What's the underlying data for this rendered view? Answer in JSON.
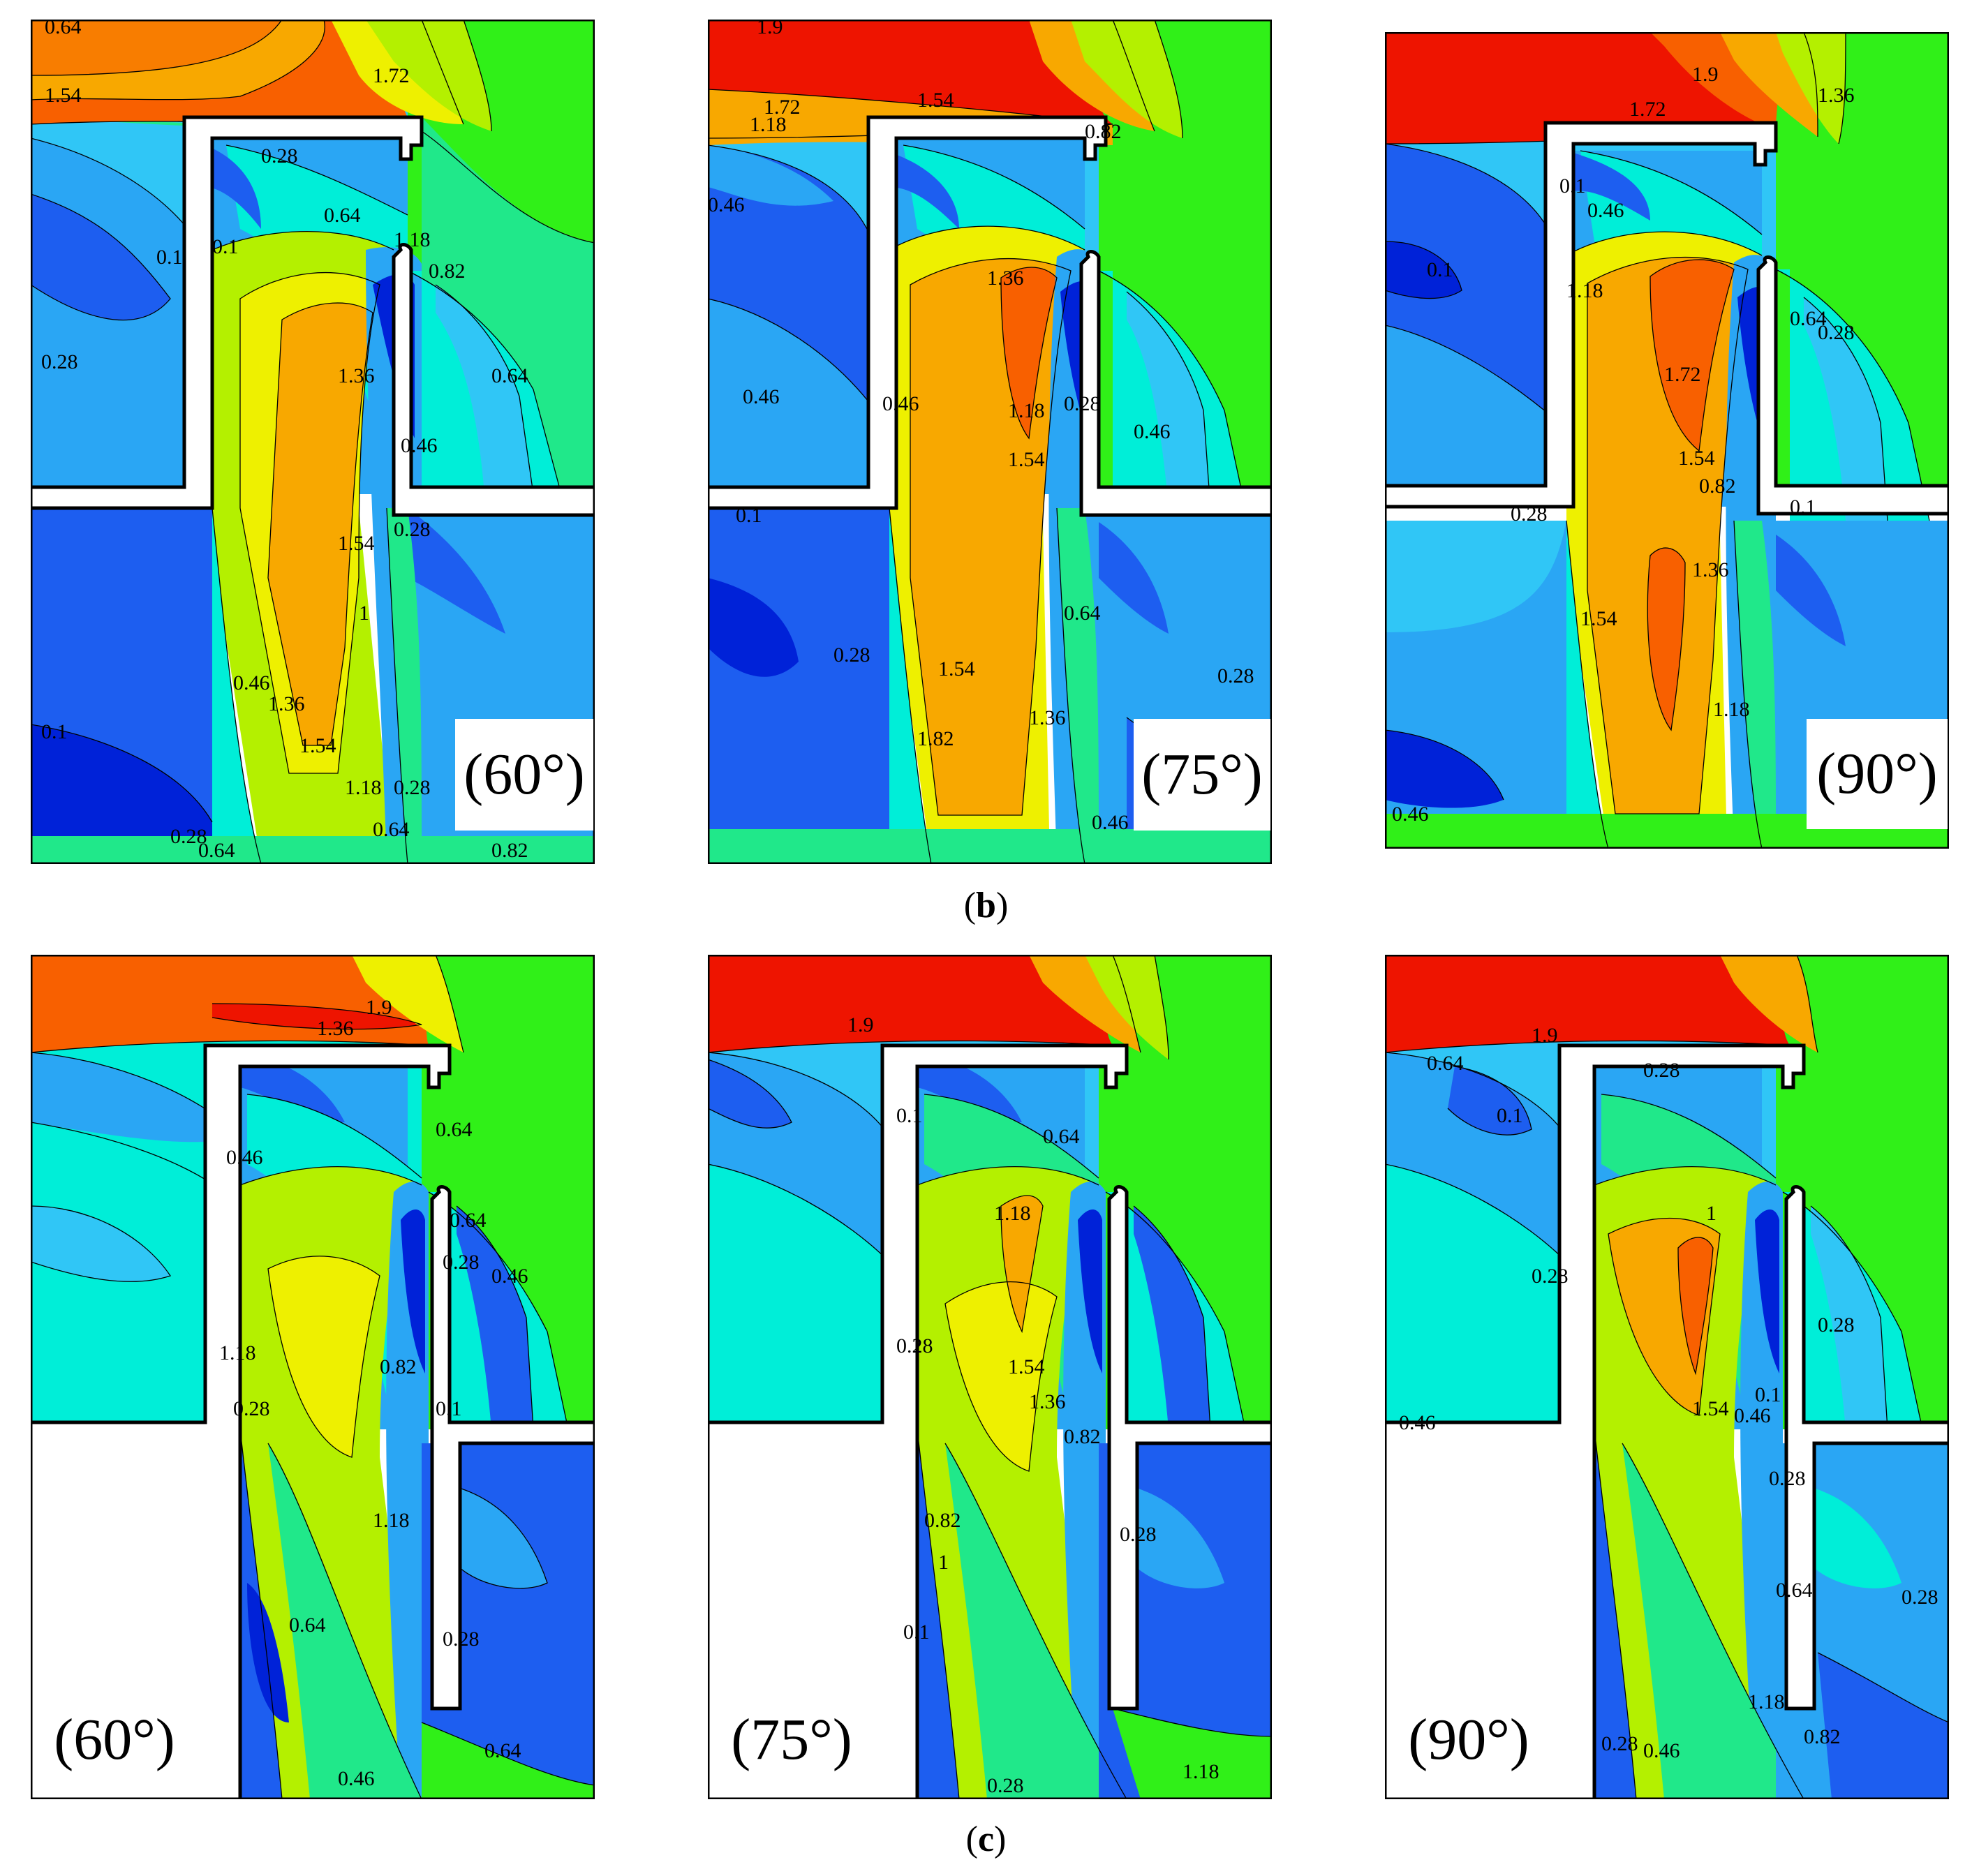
{
  "figure": {
    "caption_b": "b",
    "caption_c": "c",
    "colors": {
      "deep_blue": "#0022d8",
      "blue": "#1d5ef0",
      "light_blue": "#2aa6f4",
      "sky": "#30c6f6",
      "cyan": "#00eed8",
      "teal_green": "#20e88a",
      "green": "#30f018",
      "yellow_green": "#b4f000",
      "yellow": "#eef000",
      "orange": "#f8a800",
      "orange_red": "#f86000",
      "red": "#ee1400",
      "wall": "#ffffff",
      "outline": "#000000"
    },
    "rows": [
      {
        "id": "b",
        "panels": [
          {
            "angle": "(60°)",
            "labels": [
              "0.64",
              "1.54",
              "1.72",
              "0.28",
              "0.64",
              "1.18",
              "0.82",
              "0.1",
              "0.1",
              "0.28",
              "1.36",
              "0.64",
              "0.46",
              "1.54",
              "0.28",
              "1",
              "0.46",
              "1.36",
              "1.54",
              "1.18",
              "0.28",
              "0.64",
              "0.1",
              "0.28",
              "0.64",
              "0.82"
            ]
          },
          {
            "angle": "(75°)",
            "labels": [
              "1.9",
              "1.72",
              "1.54",
              "1.18",
              "0.82",
              "0.46",
              "1.36",
              "0.46",
              "1.18",
              "1.54",
              "0.28",
              "0.46",
              "0.46",
              "0.1",
              "0.28",
              "1.54",
              "1.82",
              "0.64",
              "1.36",
              "0.28",
              "0.46"
            ]
          },
          {
            "angle": "(90°)",
            "labels": [
              "1.9",
              "1.36",
              "1.72",
              "0.1",
              "0.46",
              "0.1",
              "1.18",
              "0.28",
              "0.64",
              "1.72",
              "1.54",
              "0.82",
              "1.36",
              "0.1",
              "0.28",
              "1.54",
              "1.18",
              "0.46",
              "0.64"
            ]
          }
        ]
      },
      {
        "id": "c",
        "panels": [
          {
            "angle": "(60°)",
            "labels": [
              "1.9",
              "1.36",
              "0.64",
              "0.46",
              "0.64",
              "0.28",
              "0.46",
              "0.82",
              "1.18",
              "0.28",
              "0.1",
              "1.18",
              "0.64",
              "0.28",
              "0.46",
              "0.64"
            ]
          },
          {
            "angle": "(75°)",
            "labels": [
              "1.9",
              "0.1",
              "0.64",
              "1.18",
              "0.28",
              "1.54",
              "1.36",
              "0.82",
              "0.82",
              "1",
              "0.1",
              "0.28",
              "1.18",
              "0.28"
            ]
          },
          {
            "angle": "(90°)",
            "labels": [
              "1.9",
              "0.64",
              "0.28",
              "0.1",
              "0.28",
              "1",
              "0.28",
              "1.54",
              "0.46",
              "0.1",
              "0.28",
              "0.64",
              "0.46",
              "0.28",
              "1.18",
              "0.82",
              "0.46",
              "0.28"
            ]
          }
        ]
      }
    ]
  }
}
